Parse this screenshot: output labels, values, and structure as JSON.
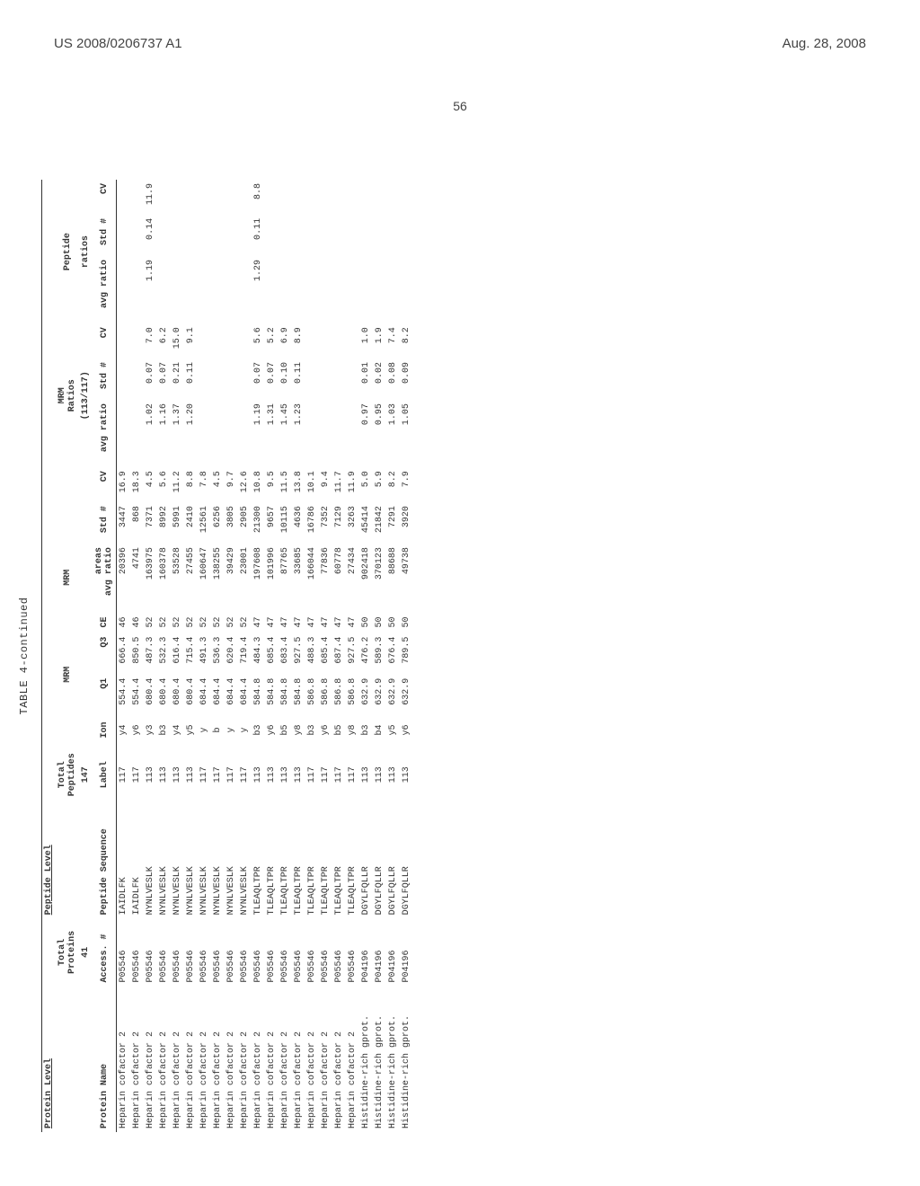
{
  "header": {
    "left": "US 2008/0206737 A1",
    "right": "Aug. 28, 2008"
  },
  "page_number": "56",
  "table": {
    "title": "TABLE 4-continued",
    "section_labels": {
      "protein_level": "Protein Level",
      "peptide_level": "Peptide Level"
    },
    "group_headers": {
      "total_proteins": "Total\nProteins",
      "total_peptides": "Total\nPeptides",
      "mrm": "MRM",
      "mrm_ratios": "MRM\nRatios",
      "peptide": "Peptide"
    },
    "sub_headers": {
      "c41": "41",
      "c147": "147",
      "c113117": "(113/117)",
      "ratios": "ratios"
    },
    "col_headers": [
      "Protein Name",
      "Access. #",
      "Peptide Sequence",
      "Label",
      "Ion",
      "Q1",
      "Q3",
      "CE",
      "areas\navg ratio",
      "Std #",
      "CV",
      "avg ratio",
      "Std #",
      "CV",
      "avg ratio",
      "Std #",
      "CV"
    ],
    "rows": [
      [
        "Heparin cofactor 2",
        "P05546",
        "IAIDLFK",
        "117",
        "y4",
        "554.4",
        "666.4",
        "46",
        "20396",
        "3447",
        "16.9",
        "",
        "",
        "",
        "",
        "",
        ""
      ],
      [
        "Heparin cofactor 2",
        "P05546",
        "IAIDLFK",
        "117",
        "y6",
        "554.4",
        "850.5",
        "46",
        "4741",
        "868",
        "18.3",
        "",
        "",
        "",
        "",
        "",
        ""
      ],
      [
        "Heparin cofactor 2",
        "P05546",
        "NYNLVESLK",
        "113",
        "y3",
        "680.4",
        "487.3",
        "52",
        "163975",
        "7371",
        "4.5",
        "1.02",
        "0.07",
        "7.0",
        "1.19",
        "0.14",
        "11.9"
      ],
      [
        "Heparin cofactor 2",
        "P05546",
        "NYNLVESLK",
        "113",
        "b3",
        "680.4",
        "532.3",
        "52",
        "160378",
        "8992",
        "5.6",
        "1.16",
        "0.07",
        "6.2",
        "",
        "",
        ""
      ],
      [
        "Heparin cofactor 2",
        "P05546",
        "NYNLVESLK",
        "113",
        "y4",
        "680.4",
        "616.4",
        "52",
        "53528",
        "5991",
        "11.2",
        "1.37",
        "0.21",
        "15.0",
        "",
        "",
        ""
      ],
      [
        "Heparin cofactor 2",
        "P05546",
        "NYNLVESLK",
        "113",
        "y5",
        "680.4",
        "715.4",
        "52",
        "27455",
        "2410",
        "8.8",
        "1.20",
        "0.11",
        "9.1",
        "",
        "",
        ""
      ],
      [
        "Heparin cofactor 2",
        "P05546",
        "NYNLVESLK",
        "117",
        "y",
        "684.4",
        "491.3",
        "52",
        "160647",
        "12561",
        "7.8",
        "",
        "",
        "",
        "",
        "",
        ""
      ],
      [
        "Heparin cofactor 2",
        "P05546",
        "NYNLVESLK",
        "117",
        "b",
        "684.4",
        "536.3",
        "52",
        "138255",
        "6256",
        "4.5",
        "",
        "",
        "",
        "",
        "",
        ""
      ],
      [
        "Heparin cofactor 2",
        "P05546",
        "NYNLVESLK",
        "117",
        "y",
        "684.4",
        "620.4",
        "52",
        "39429",
        "3805",
        "9.7",
        "",
        "",
        "",
        "",
        "",
        ""
      ],
      [
        "Heparin cofactor 2",
        "P05546",
        "NYNLVESLK",
        "117",
        "y",
        "684.4",
        "719.4",
        "52",
        "23001",
        "2905",
        "12.6",
        "",
        "",
        "",
        "",
        "",
        ""
      ],
      [
        "Heparin cofactor 2",
        "P05546",
        "TLEAQLTPR",
        "113",
        "b3",
        "584.8",
        "484.3",
        "47",
        "197608",
        "21300",
        "10.8",
        "1.19",
        "0.07",
        "5.6",
        "1.29",
        "0.11",
        "8.8"
      ],
      [
        "Heparin cofactor 2",
        "P05546",
        "TLEAQLTPR",
        "113",
        "y6",
        "584.8",
        "685.4",
        "47",
        "101996",
        "9657",
        "9.5",
        "1.31",
        "0.07",
        "5.2",
        "",
        "",
        ""
      ],
      [
        "Heparin cofactor 2",
        "P05546",
        "TLEAQLTPR",
        "113",
        "b5",
        "584.8",
        "683.4",
        "47",
        "87765",
        "10115",
        "11.5",
        "1.45",
        "0.10",
        "6.9",
        "",
        "",
        ""
      ],
      [
        "Heparin cofactor 2",
        "P05546",
        "TLEAQLTPR",
        "113",
        "y8",
        "584.8",
        "927.5",
        "47",
        "33685",
        "4636",
        "13.8",
        "1.23",
        "0.11",
        "8.9",
        "",
        "",
        ""
      ],
      [
        "Heparin cofactor 2",
        "P05546",
        "TLEAQLTPR",
        "117",
        "b3",
        "586.8",
        "488.3",
        "47",
        "166044",
        "16786",
        "10.1",
        "",
        "",
        "",
        "",
        "",
        ""
      ],
      [
        "Heparin cofactor 2",
        "P05546",
        "TLEAQLTPR",
        "117",
        "y6",
        "586.8",
        "685.4",
        "47",
        "77836",
        "7352",
        "9.4",
        "",
        "",
        "",
        "",
        "",
        ""
      ],
      [
        "Heparin cofactor 2",
        "P05546",
        "TLEAQLTPR",
        "117",
        "b5",
        "586.8",
        "687.4",
        "47",
        "60778",
        "7129",
        "11.7",
        "",
        "",
        "",
        "",
        "",
        ""
      ],
      [
        "Heparin cofactor 2",
        "P05546",
        "TLEAQLTPR",
        "117",
        "y8",
        "586.8",
        "927.5",
        "47",
        "27434",
        "3263",
        "11.9",
        "",
        "",
        "",
        "",
        "",
        ""
      ],
      [
        "Histidine-rich gprot.",
        "P04196",
        "DGYLFQLLR",
        "113",
        "b3",
        "632.9",
        "476.2",
        "50",
        "902418",
        "45414",
        "5.0",
        "0.97",
        "0.01",
        "1.0",
        "",
        "",
        ""
      ],
      [
        "Histidine-rich gprot.",
        "P04196",
        "DGYLFQLLR",
        "113",
        "b4",
        "632.9",
        "589.3",
        "50",
        "370123",
        "21842",
        "5.9",
        "0.95",
        "0.02",
        "1.9",
        "",
        "",
        ""
      ],
      [
        "Histidine-rich gprot.",
        "P04196",
        "DGYLFQLLR",
        "113",
        "y5",
        "632.9",
        "676.4",
        "50",
        "88688",
        "7291",
        "8.2",
        "1.03",
        "0.08",
        "7.4",
        "",
        "",
        ""
      ],
      [
        "Histidine-rich gprot.",
        "P04196",
        "DGYLFQLLR",
        "113",
        "y6",
        "632.9",
        "789.5",
        "50",
        "49738",
        "3920",
        "7.9",
        "1.05",
        "0.09",
        "8.2",
        "",
        "",
        ""
      ]
    ]
  }
}
